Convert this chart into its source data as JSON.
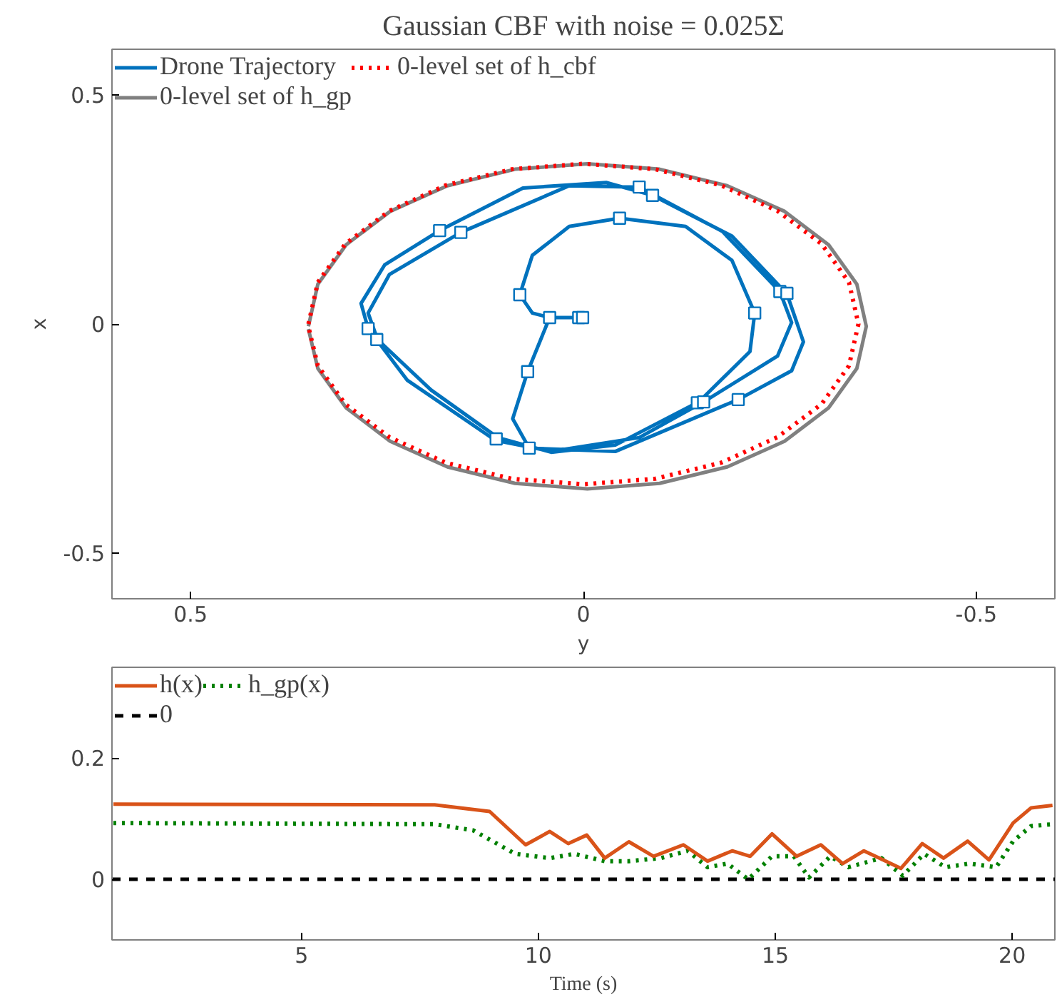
{
  "chart_data": [
    {
      "type": "line",
      "title": "Gaussian CBF with noise = 0.025Σ",
      "xlabel": "y",
      "ylabel": "x",
      "xlim": [
        0.6,
        -0.6
      ],
      "ylim": [
        -0.6,
        0.6
      ],
      "xticks": [
        0.5,
        0,
        -0.5
      ],
      "yticks": [
        -0.5,
        0,
        0.5
      ],
      "grid": false,
      "legend": "top left",
      "series": [
        {
          "name": "Drone Trajectory",
          "color": "#0072bd",
          "line_style": "solid",
          "x": [
            0.006,
            0.043,
            0.071,
            0.09,
            0.069,
            -0.041,
            -0.197,
            -0.265,
            -0.28,
            -0.259,
            -0.189,
            -0.088,
            -0.029,
            0.077,
            0.183,
            0.253,
            0.283,
            0.274,
            0.224,
            0.112,
            0.041,
            -0.071,
            -0.153,
            -0.247,
            -0.265,
            -0.25,
            -0.177,
            -0.071,
            0.018,
            0.156,
            0.247,
            0.274,
            0.262,
            0.194,
            0.109,
            0.041,
            -0.041,
            -0.147,
            -0.212,
            -0.218,
            -0.189,
            -0.13,
            -0.046,
            0.018,
            0.065,
            0.081,
            0.065,
            0.043
          ],
          "values": [
            0.014,
            0.014,
            -0.104,
            -0.207,
            -0.271,
            -0.278,
            -0.165,
            -0.102,
            -0.039,
            0.066,
            0.192,
            0.281,
            0.309,
            0.297,
            0.204,
            0.129,
            0.045,
            -0.01,
            -0.123,
            -0.254,
            -0.278,
            -0.248,
            -0.17,
            -0.07,
            0.003,
            0.071,
            0.202,
            0.299,
            0.302,
            0.2,
            0.108,
            0.024,
            -0.034,
            -0.144,
            -0.248,
            -0.28,
            -0.264,
            -0.17,
            -0.06,
            0.024,
            0.139,
            0.213,
            0.231,
            0.213,
            0.15,
            0.064,
            0.024,
            0.014
          ]
        },
        {
          "name": "0-level set of h_cbf",
          "color": "#ff0000",
          "line_style": "dotted",
          "x": [
            0.35,
            0.338,
            0.303,
            0.247,
            0.175,
            0.091,
            0,
            -0.091,
            -0.175,
            -0.247,
            -0.303,
            -0.338,
            -0.35,
            -0.338,
            -0.303,
            -0.247,
            -0.175,
            -0.091,
            0,
            0.091,
            0.175,
            0.247,
            0.303,
            0.338,
            0.35
          ],
          "values": [
            0,
            0.091,
            0.175,
            0.247,
            0.303,
            0.338,
            0.35,
            0.338,
            0.303,
            0.247,
            0.175,
            0.091,
            0,
            -0.091,
            -0.175,
            -0.247,
            -0.303,
            -0.338,
            -0.35,
            -0.338,
            -0.303,
            -0.247,
            -0.175,
            -0.091,
            -0.006
          ]
        },
        {
          "name": "0-level set of h_gp",
          "color": "#808080",
          "line_style": "solid",
          "x": [
            0.35,
            0.338,
            0.302,
            0.246,
            0.173,
            0.087,
            -0.005,
            -0.097,
            -0.183,
            -0.256,
            -0.312,
            -0.348,
            -0.36,
            -0.348,
            -0.312,
            -0.256,
            -0.183,
            -0.097,
            -0.005,
            0.087,
            0.173,
            0.246,
            0.302,
            0.338,
            0.35
          ],
          "values": [
            -0.005,
            0.087,
            0.173,
            0.246,
            0.302,
            0.338,
            0.35,
            0.338,
            0.302,
            0.246,
            0.173,
            0.087,
            -0.005,
            -0.097,
            -0.183,
            -0.256,
            -0.312,
            -0.348,
            -0.36,
            -0.348,
            -0.312,
            -0.256,
            -0.183,
            -0.097,
            -0.011
          ]
        },
        {
          "type": "scatter",
          "marker": "square",
          "color": "#0072bd",
          "x": [
            0.006,
            0.001,
            0.043,
            0.081,
            0.071,
            0.111,
            0.069,
            -0.046,
            -0.071,
            -0.088,
            0.183,
            0.156,
            0.274,
            0.263,
            -0.25,
            -0.259,
            -0.218,
            -0.145,
            -0.153,
            -0.197
          ],
          "values": [
            0.014,
            0.014,
            0.014,
            0.064,
            -0.104,
            -0.251,
            -0.271,
            0.231,
            0.299,
            0.281,
            0.204,
            0.2,
            -0.01,
            -0.034,
            0.071,
            0.067,
            0.024,
            -0.172,
            -0.17,
            -0.165
          ]
        }
      ]
    },
    {
      "type": "line",
      "xlabel": "Time (s)",
      "xlim": [
        1,
        20.9
      ],
      "ylim": [
        -0.1,
        0.35
      ],
      "xticks": [
        5,
        10,
        15,
        20
      ],
      "yticks": [
        0,
        0.2
      ],
      "grid": false,
      "legend": "top left",
      "series": [
        {
          "name": "h(x)",
          "color": "#d95319",
          "line_style": "solid",
          "x": [
            1.03,
            7.81,
            8.97,
            9.73,
            10.24,
            10.63,
            11.02,
            11.4,
            11.91,
            12.43,
            13.06,
            13.57,
            14.09,
            14.47,
            14.93,
            15.45,
            15.96,
            16.42,
            16.87,
            17.2,
            17.65,
            18.1,
            18.55,
            19.06,
            19.51,
            20.02,
            20.4,
            20.85
          ],
          "values": [
            0.124,
            0.123,
            0.112,
            0.057,
            0.079,
            0.059,
            0.073,
            0.035,
            0.062,
            0.038,
            0.057,
            0.03,
            0.047,
            0.038,
            0.075,
            0.038,
            0.057,
            0.026,
            0.047,
            0.035,
            0.018,
            0.059,
            0.035,
            0.063,
            0.032,
            0.093,
            0.118,
            0.122
          ]
        },
        {
          "name": "h_gp(x)",
          "color": "#008000",
          "line_style": "dotted",
          "x": [
            1.03,
            7.81,
            8.62,
            9.51,
            10.24,
            10.76,
            11.4,
            11.91,
            12.58,
            13.15,
            13.57,
            13.99,
            14.43,
            14.93,
            15.39,
            15.71,
            16.16,
            16.54,
            17.24,
            17.69,
            18.14,
            18.59,
            19.1,
            19.66,
            20.02,
            20.4,
            20.85
          ],
          "values": [
            0.093,
            0.091,
            0.081,
            0.042,
            0.035,
            0.042,
            0.03,
            0.03,
            0.035,
            0.047,
            0.02,
            0.026,
            0,
            0.038,
            0.038,
            0.003,
            0.038,
            0.02,
            0.035,
            0.006,
            0.042,
            0.02,
            0.026,
            0.02,
            0.063,
            0.088,
            0.091
          ]
        },
        {
          "name": "0",
          "color": "#000000",
          "line_style": "dashed",
          "x": [
            1,
            20.9
          ],
          "values": [
            0,
            0
          ]
        }
      ]
    }
  ]
}
